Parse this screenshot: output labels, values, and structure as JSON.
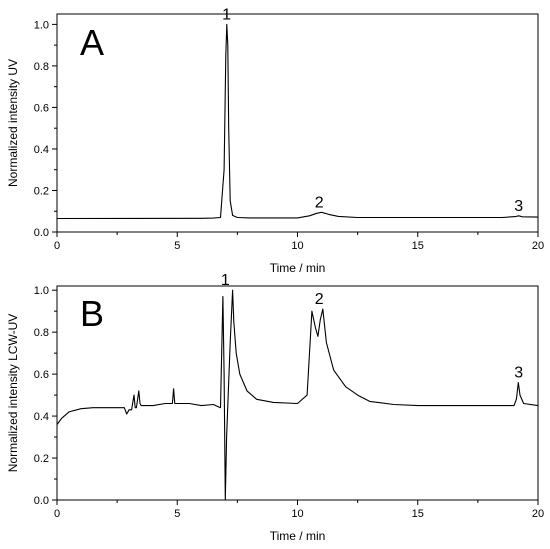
{
  "chart_data": [
    {
      "id": "A",
      "type": "line",
      "panel_label": "A",
      "xlabel": "Time / min",
      "ylabel": "Normalized intensity UV",
      "xlim": [
        0,
        20
      ],
      "ylim": [
        0,
        1.05
      ],
      "xticks": [
        0,
        5,
        10,
        15,
        20
      ],
      "yticks": [
        0.0,
        0.2,
        0.4,
        0.6,
        0.8,
        1.0
      ],
      "ytick_labels": [
        "0.0",
        "0.2",
        "0.4",
        "0.6",
        "0.8",
        "1.0"
      ],
      "series": [
        {
          "x": [
            0,
            6.0,
            6.5,
            6.8,
            6.95,
            7.02,
            7.06,
            7.1,
            7.14,
            7.2,
            7.3,
            7.5,
            8.0,
            10.0,
            10.5,
            10.8,
            11.0,
            11.3,
            11.7,
            12.5,
            15.0,
            18.5,
            19.05,
            19.2,
            19.35,
            20.0
          ],
          "y": [
            0.065,
            0.066,
            0.067,
            0.07,
            0.3,
            0.85,
            1.0,
            0.9,
            0.5,
            0.15,
            0.08,
            0.07,
            0.068,
            0.068,
            0.078,
            0.09,
            0.095,
            0.085,
            0.075,
            0.07,
            0.07,
            0.07,
            0.074,
            0.078,
            0.073,
            0.072
          ]
        }
      ],
      "peak_labels": [
        {
          "text": "1",
          "x": 7.05,
          "y": 1.0
        },
        {
          "text": "2",
          "x": 10.9,
          "y": 0.095
        },
        {
          "text": "3",
          "x": 19.2,
          "y": 0.078
        }
      ]
    },
    {
      "id": "B",
      "type": "line",
      "panel_label": "B",
      "xlabel": "Time / min",
      "ylabel": "Normalized intensity LCW-UV",
      "xlim": [
        0,
        20
      ],
      "ylim": [
        0,
        1.02
      ],
      "xticks": [
        0,
        5,
        10,
        15,
        20
      ],
      "yticks": [
        0.0,
        0.2,
        0.4,
        0.6,
        0.8,
        1.0
      ],
      "ytick_labels": [
        "0.0",
        "0.2",
        "0.4",
        "0.6",
        "0.8",
        "1.0"
      ],
      "series": [
        {
          "x": [
            0,
            0.2,
            0.5,
            1.0,
            1.5,
            2.0,
            2.5,
            2.8,
            2.9,
            3.0,
            3.1,
            3.2,
            3.25,
            3.3,
            3.4,
            3.45,
            3.5,
            3.7,
            4.0,
            4.5,
            4.8,
            4.85,
            4.9,
            5.5,
            6.0,
            6.5,
            6.8,
            6.9,
            6.95,
            7.0,
            7.05,
            7.1,
            7.2,
            7.3,
            7.35,
            7.45,
            7.6,
            7.9,
            8.3,
            9.0,
            10.0,
            10.4,
            10.6,
            10.75,
            10.85,
            10.95,
            11.05,
            11.2,
            11.5,
            12.0,
            12.5,
            13.0,
            14.0,
            15.0,
            18.5,
            19.0,
            19.1,
            19.18,
            19.25,
            19.4,
            20.0
          ],
          "y": [
            0.36,
            0.39,
            0.42,
            0.435,
            0.44,
            0.44,
            0.44,
            0.44,
            0.41,
            0.43,
            0.43,
            0.5,
            0.44,
            0.44,
            0.52,
            0.46,
            0.45,
            0.45,
            0.45,
            0.46,
            0.46,
            0.53,
            0.46,
            0.46,
            0.45,
            0.455,
            0.44,
            0.97,
            0.6,
            0.0,
            0.3,
            0.45,
            0.75,
            1.0,
            0.85,
            0.7,
            0.6,
            0.52,
            0.48,
            0.465,
            0.46,
            0.5,
            0.9,
            0.82,
            0.78,
            0.86,
            0.91,
            0.75,
            0.62,
            0.54,
            0.5,
            0.47,
            0.455,
            0.45,
            0.45,
            0.45,
            0.48,
            0.56,
            0.5,
            0.46,
            0.45
          ]
        }
      ],
      "peak_labels": [
        {
          "text": "1",
          "x": 7.0,
          "y": 1.0
        },
        {
          "text": "2",
          "x": 10.9,
          "y": 0.91
        },
        {
          "text": "3",
          "x": 19.2,
          "y": 0.56
        }
      ]
    }
  ]
}
